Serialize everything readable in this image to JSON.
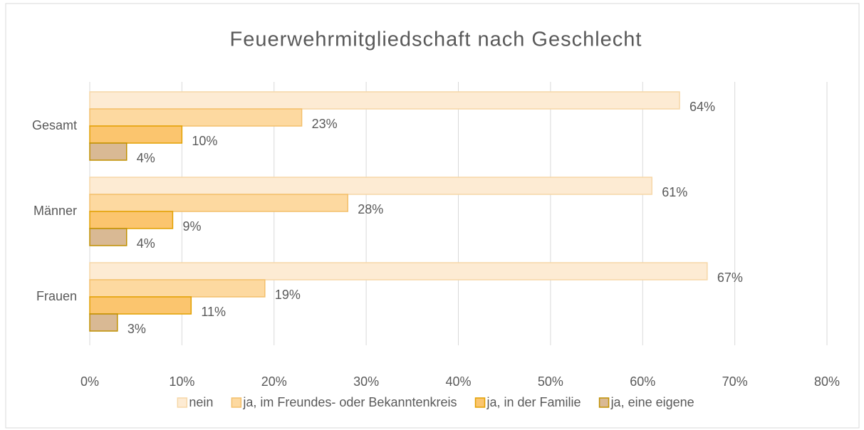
{
  "chart_data": {
    "type": "bar",
    "orientation": "horizontal",
    "title": "Feuerwehrmitgliedschaft nach Geschlecht",
    "categories": [
      "Gesamt",
      "Männer",
      "Frauen"
    ],
    "series": [
      {
        "name": "nein",
        "color": "#fdebd3",
        "stroke": "#f6d7a7",
        "values": [
          64,
          61,
          67
        ],
        "value_labels": [
          "64%",
          "61%",
          "67%"
        ]
      },
      {
        "name": "ja, im Freundes- oder Bekanntenkreis",
        "color": "#fdd9a0",
        "stroke": "#f3bf6b",
        "values": [
          23,
          28,
          19
        ],
        "value_labels": [
          "23%",
          "28%",
          "19%"
        ]
      },
      {
        "name": "ja, in der Familie",
        "color": "#fbc56e",
        "stroke": "#e2a000",
        "values": [
          10,
          9,
          11
        ],
        "value_labels": [
          "10%",
          "9%",
          "11%"
        ]
      },
      {
        "name": "ja, eine eigene",
        "color": "#d9b994",
        "stroke": "#c09000",
        "values": [
          4,
          4,
          3
        ],
        "value_labels": [
          "4%",
          "4%",
          "3%"
        ]
      }
    ],
    "xlim": [
      0,
      80
    ],
    "xticks": [
      {
        "value": 0,
        "label": "0%"
      },
      {
        "value": 10,
        "label": "10%"
      },
      {
        "value": 20,
        "label": "20%"
      },
      {
        "value": 30,
        "label": "30%"
      },
      {
        "value": 40,
        "label": "40%"
      },
      {
        "value": 50,
        "label": "50%"
      },
      {
        "value": 60,
        "label": "60%"
      },
      {
        "value": 70,
        "label": "70%"
      },
      {
        "value": 80,
        "label": "80%"
      }
    ],
    "grid": true,
    "legend": "bottom"
  }
}
